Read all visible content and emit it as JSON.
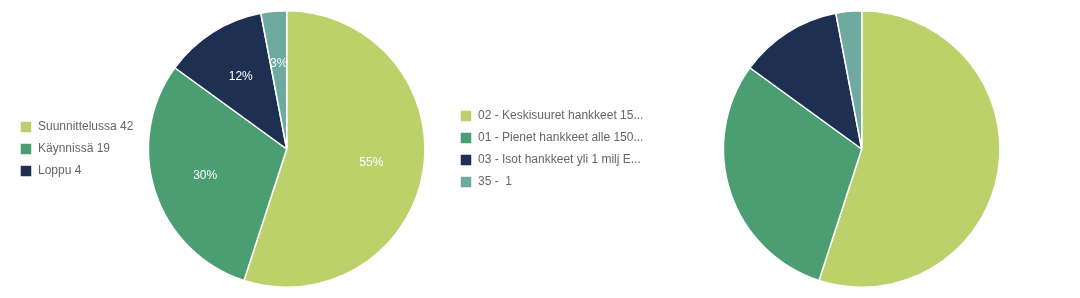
{
  "chart_data": [
    {
      "type": "pie",
      "categories": [
        "Suunnittelussa 42",
        "Käynnissä 19",
        "Loppu 4",
        null
      ],
      "values": [
        55,
        30,
        12,
        3
      ],
      "value_labels": [
        "55%",
        "30%",
        "12%",
        "3%"
      ],
      "colors": [
        "#bdd16b",
        "#4a9e72",
        "#1e3052",
        "#6eaaa0"
      ],
      "data_labels": true,
      "legend": "left"
    },
    {
      "type": "pie",
      "categories": [
        "02 - Keskisuuret hankkeet 15...",
        "01 - Pienet hankkeet alle 150...",
        "03 - Isot hankkeet yli 1 milj E...",
        "35 -  1"
      ],
      "values": [
        55,
        30,
        12,
        3
      ],
      "colors": [
        "#bdd16b",
        "#4a9e72",
        "#1e3052",
        "#6eaaa0"
      ],
      "legend": "left"
    }
  ]
}
